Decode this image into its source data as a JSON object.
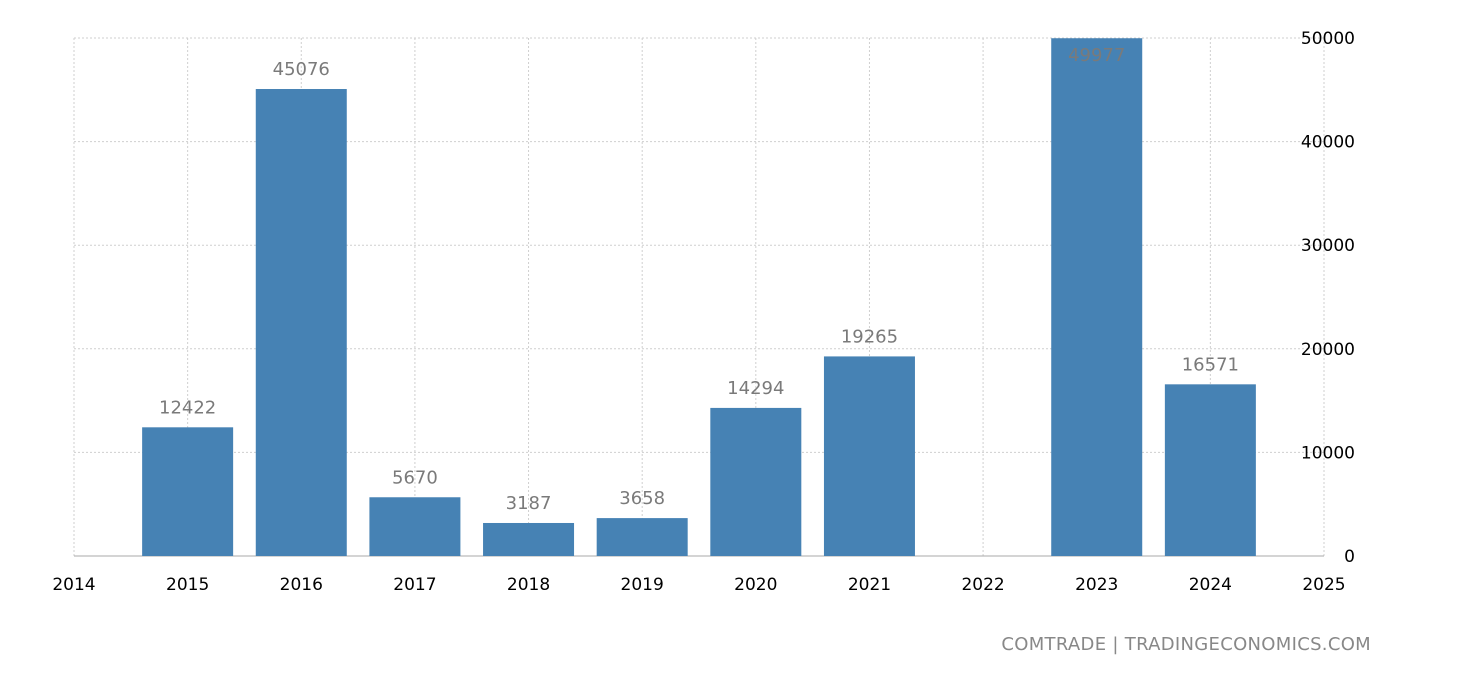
{
  "chart_data": {
    "type": "bar",
    "categories": [
      "2015",
      "2016",
      "2017",
      "2018",
      "2019",
      "2020",
      "2021",
      "2022",
      "2023",
      "2024"
    ],
    "values": [
      12422,
      45076,
      5670,
      3187,
      3658,
      14294,
      19265,
      null,
      49977,
      16571
    ],
    "data_labels": [
      "12422",
      "45076",
      "5670",
      "3187",
      "3658",
      "14294",
      "19265",
      "",
      "49977",
      "16571"
    ],
    "x_ticks": [
      "2014",
      "2015",
      "2016",
      "2017",
      "2018",
      "2019",
      "2020",
      "2021",
      "2022",
      "2023",
      "2024",
      "2025"
    ],
    "y_ticks": [
      "0",
      "10000",
      "20000",
      "30000",
      "40000",
      "50000"
    ],
    "ylim": [
      0,
      50000
    ],
    "xlim": [
      2014,
      2025
    ],
    "y_axis_side": "right",
    "grid": true,
    "bar_color": "#4682b4",
    "title": "",
    "xlabel": "",
    "ylabel": ""
  },
  "source": "COMTRADE | TRADINGECONOMICS.COM"
}
